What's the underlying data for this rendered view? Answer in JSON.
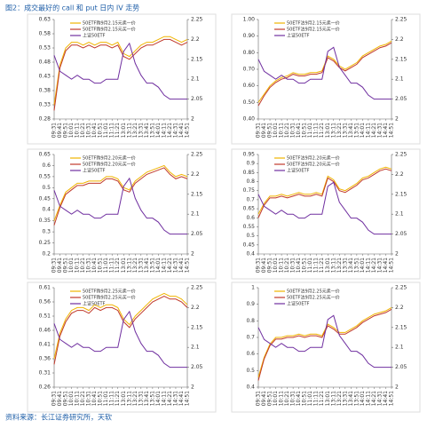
{
  "header": {
    "title": "图2：成交最好的 call 和 put 日内 IV 走势"
  },
  "footer": {
    "source": "资料来源：长江证券研究所，天软"
  },
  "chart_data": [
    {
      "type": "line",
      "categories": [
        "09:31",
        "09:41",
        "09:51",
        "10:01",
        "10:11",
        "10:21",
        "10:31",
        "10:41",
        "10:51",
        "11:01",
        "11:11",
        "11:21",
        "13:01",
        "13:11",
        "13:21",
        "13:31",
        "13:41",
        "13:51",
        "14:01",
        "14:11",
        "14:21",
        "14:31",
        "14:41",
        "14:51"
      ],
      "series": [
        {
          "name": "50ETF购9月2.15元卖一价",
          "color": "#f0b400",
          "values": [
            0.33,
            0.47,
            0.53,
            0.55,
            0.55,
            0.54,
            0.55,
            0.54,
            0.55,
            0.55,
            0.54,
            0.55,
            0.51,
            0.5,
            0.52,
            0.54,
            0.55,
            0.55,
            0.56,
            0.57,
            0.57,
            0.56,
            0.55,
            0.56
          ]
        },
        {
          "name": "50ETF购9月2.15元买一价",
          "color": "#c0392b",
          "values": [
            0.31,
            0.46,
            0.52,
            0.54,
            0.54,
            0.53,
            0.54,
            0.53,
            0.54,
            0.54,
            0.53,
            0.54,
            0.5,
            0.49,
            0.51,
            0.53,
            0.54,
            0.54,
            0.55,
            0.56,
            0.56,
            0.55,
            0.54,
            0.55
          ]
        },
        {
          "name": "上证50ETF",
          "color": "#7030a0",
          "axis": "y2",
          "values": [
            2.16,
            2.12,
            2.11,
            2.1,
            2.11,
            2.1,
            2.1,
            2.09,
            2.09,
            2.1,
            2.1,
            2.1,
            2.17,
            2.19,
            2.14,
            2.11,
            2.09,
            2.09,
            2.08,
            2.06,
            2.05,
            2.05,
            2.05,
            2.05
          ]
        }
      ],
      "ylim": [
        0.28,
        0.63
      ],
      "yticks": [
        0.28,
        0.33,
        0.38,
        0.43,
        0.48,
        0.53,
        0.58,
        0.63
      ],
      "y2lim": [
        2,
        2.25
      ],
      "y2ticks": [
        2,
        2.05,
        2.1,
        2.15,
        2.2,
        2.25
      ]
    },
    {
      "type": "line",
      "categories": [
        "09:31",
        "09:41",
        "09:51",
        "10:01",
        "10:11",
        "10:21",
        "10:31",
        "10:41",
        "10:51",
        "11:01",
        "11:11",
        "11:21",
        "13:01",
        "13:11",
        "13:21",
        "13:31",
        "13:41",
        "13:51",
        "14:01",
        "14:11",
        "14:21",
        "14:31",
        "14:41",
        "14:51"
      ],
      "series": [
        {
          "name": "50ETF沽9月2.15元卖一价",
          "color": "#f0b400",
          "values": [
            0.5,
            0.55,
            0.6,
            0.63,
            0.65,
            0.66,
            0.68,
            0.67,
            0.67,
            0.68,
            0.68,
            0.69,
            0.78,
            0.76,
            0.72,
            0.7,
            0.72,
            0.74,
            0.78,
            0.8,
            0.82,
            0.84,
            0.85,
            0.87
          ]
        },
        {
          "name": "50ETF沽9月2.15元买一价",
          "color": "#c0392b",
          "values": [
            0.48,
            0.54,
            0.59,
            0.62,
            0.64,
            0.65,
            0.67,
            0.66,
            0.66,
            0.67,
            0.67,
            0.68,
            0.77,
            0.75,
            0.71,
            0.69,
            0.71,
            0.73,
            0.77,
            0.79,
            0.81,
            0.83,
            0.84,
            0.86
          ]
        },
        {
          "name": "上证50ETF",
          "color": "#7030a0",
          "axis": "y2",
          "values": [
            2.15,
            2.12,
            2.11,
            2.1,
            2.11,
            2.1,
            2.1,
            2.09,
            2.09,
            2.1,
            2.1,
            2.1,
            2.17,
            2.18,
            2.13,
            2.11,
            2.09,
            2.09,
            2.08,
            2.06,
            2.05,
            2.05,
            2.05,
            2.05
          ]
        }
      ],
      "ylim": [
        0.4,
        1
      ],
      "yticks": [
        {
          "value": 0.4,
          "label": "0.40"
        },
        {
          "value": 0.5,
          "label": "0.50"
        },
        {
          "value": 0.6,
          "label": "0.60"
        },
        {
          "value": 0.7,
          "label": "0.70"
        },
        {
          "value": 0.8,
          "label": "0.80"
        },
        {
          "value": 0.9,
          "label": "0.90"
        },
        {
          "value": 1,
          "label": "1.00"
        }
      ],
      "y2lim": [
        2,
        2.25
      ],
      "y2ticks": [
        2,
        2.05,
        2.1,
        2.15,
        2.2,
        2.25
      ]
    },
    {
      "type": "line",
      "categories": [
        "09:31",
        "09:41",
        "09:51",
        "10:01",
        "10:11",
        "10:21",
        "10:31",
        "10:41",
        "10:51",
        "11:01",
        "11:11",
        "11:21",
        "13:01",
        "13:11",
        "13:21",
        "13:31",
        "13:41",
        "13:51",
        "14:01",
        "14:11",
        "14:21",
        "14:31",
        "14:41",
        "14:51"
      ],
      "series": [
        {
          "name": "50ETF购9月2.20元卖一价",
          "color": "#f0b400",
          "values": [
            0.35,
            0.42,
            0.48,
            0.5,
            0.52,
            0.52,
            0.53,
            0.53,
            0.53,
            0.55,
            0.55,
            0.54,
            0.5,
            0.49,
            0.53,
            0.55,
            0.57,
            0.58,
            0.59,
            0.6,
            0.57,
            0.55,
            0.56,
            0.55
          ]
        },
        {
          "name": "50ETF购9月2.20元买一价",
          "color": "#c0392b",
          "values": [
            0.33,
            0.41,
            0.47,
            0.49,
            0.51,
            0.51,
            0.52,
            0.52,
            0.52,
            0.54,
            0.54,
            0.53,
            0.49,
            0.48,
            0.52,
            0.54,
            0.56,
            0.57,
            0.58,
            0.59,
            0.56,
            0.54,
            0.55,
            0.54
          ]
        },
        {
          "name": "上证50ETF",
          "color": "#7030a0",
          "axis": "y2",
          "values": [
            2.16,
            2.12,
            2.11,
            2.1,
            2.11,
            2.1,
            2.1,
            2.09,
            2.09,
            2.1,
            2.1,
            2.1,
            2.17,
            2.19,
            2.14,
            2.11,
            2.09,
            2.09,
            2.08,
            2.06,
            2.05,
            2.05,
            2.05,
            2.05
          ]
        }
      ],
      "ylim": [
        0.2,
        0.65
      ],
      "yticks": [
        0.2,
        0.25,
        0.3,
        0.35,
        0.4,
        0.45,
        0.5,
        0.55,
        0.6,
        0.65
      ],
      "y2lim": [
        2,
        2.25
      ],
      "y2ticks": [
        2,
        2.05,
        2.1,
        2.15,
        2.2,
        2.25
      ]
    },
    {
      "type": "line",
      "categories": [
        "09:31",
        "09:41",
        "09:51",
        "10:01",
        "10:11",
        "10:21",
        "10:31",
        "10:41",
        "10:51",
        "11:01",
        "11:11",
        "11:21",
        "13:01",
        "13:11",
        "13:21",
        "13:31",
        "13:41",
        "13:51",
        "14:01",
        "14:11",
        "14:21",
        "14:31",
        "14:41",
        "14:51"
      ],
      "series": [
        {
          "name": "50ETF沽9月2.20元卖一价",
          "color": "#f0b400",
          "values": [
            0.62,
            0.68,
            0.72,
            0.72,
            0.73,
            0.72,
            0.73,
            0.74,
            0.73,
            0.73,
            0.74,
            0.73,
            0.83,
            0.81,
            0.76,
            0.75,
            0.77,
            0.79,
            0.82,
            0.83,
            0.85,
            0.87,
            0.88,
            0.87
          ]
        },
        {
          "name": "50ETF沽9月2.20元买一价",
          "color": "#c0392b",
          "values": [
            0.6,
            0.67,
            0.71,
            0.71,
            0.72,
            0.71,
            0.72,
            0.73,
            0.72,
            0.72,
            0.73,
            0.72,
            0.82,
            0.8,
            0.75,
            0.74,
            0.76,
            0.78,
            0.81,
            0.82,
            0.84,
            0.86,
            0.87,
            0.86
          ]
        },
        {
          "name": "上证50ETF",
          "color": "#7030a0",
          "axis": "y2",
          "values": [
            2.15,
            2.12,
            2.11,
            2.1,
            2.11,
            2.1,
            2.1,
            2.09,
            2.09,
            2.1,
            2.1,
            2.1,
            2.17,
            2.18,
            2.13,
            2.11,
            2.09,
            2.09,
            2.08,
            2.06,
            2.05,
            2.05,
            2.05,
            2.05
          ]
        }
      ],
      "ylim": [
        0.4,
        0.95
      ],
      "yticks": [
        0.4,
        0.45,
        0.5,
        0.55,
        0.6,
        0.65,
        0.7,
        0.75,
        0.8,
        0.85,
        0.9,
        0.95
      ],
      "y2lim": [
        2,
        2.25
      ],
      "y2ticks": [
        2,
        2.05,
        2.1,
        2.15,
        2.2,
        2.25
      ]
    },
    {
      "type": "line",
      "categories": [
        "09:31",
        "09:41",
        "09:51",
        "10:01",
        "10:11",
        "10:21",
        "10:31",
        "10:41",
        "10:51",
        "11:01",
        "11:11",
        "11:21",
        "13:01",
        "13:11",
        "13:21",
        "13:31",
        "13:41",
        "13:51",
        "14:01",
        "14:11",
        "14:21",
        "14:31",
        "14:41",
        "14:51"
      ],
      "series": [
        {
          "name": "50ETF购9月2.25元卖一价",
          "color": "#f0b400",
          "values": [
            0.36,
            0.45,
            0.5,
            0.53,
            0.54,
            0.54,
            0.53,
            0.55,
            0.54,
            0.55,
            0.55,
            0.54,
            0.5,
            0.48,
            0.51,
            0.53,
            0.55,
            0.57,
            0.58,
            0.59,
            0.58,
            0.58,
            0.57,
            0.55
          ]
        },
        {
          "name": "50ETF购9月2.25元买一价",
          "color": "#c0392b",
          "values": [
            0.34,
            0.44,
            0.49,
            0.52,
            0.53,
            0.53,
            0.52,
            0.54,
            0.53,
            0.54,
            0.54,
            0.53,
            0.49,
            0.47,
            0.5,
            0.52,
            0.54,
            0.56,
            0.57,
            0.58,
            0.57,
            0.57,
            0.56,
            0.54
          ]
        },
        {
          "name": "上证50ETF",
          "color": "#7030a0",
          "axis": "y2",
          "values": [
            2.16,
            2.12,
            2.11,
            2.1,
            2.11,
            2.1,
            2.1,
            2.09,
            2.09,
            2.1,
            2.1,
            2.1,
            2.17,
            2.19,
            2.14,
            2.11,
            2.09,
            2.09,
            2.08,
            2.06,
            2.05,
            2.05,
            2.05,
            2.05
          ]
        }
      ],
      "ylim": [
        0.26,
        0.61
      ],
      "yticks": [
        0.26,
        0.31,
        0.36,
        0.41,
        0.46,
        0.51,
        0.56,
        0.61
      ],
      "y2lim": [
        2,
        2.25
      ],
      "y2ticks": [
        2,
        2.05,
        2.1,
        2.15,
        2.2,
        2.25
      ]
    },
    {
      "type": "line",
      "categories": [
        "09:31",
        "09:41",
        "09:51",
        "10:01",
        "10:11",
        "10:21",
        "10:31",
        "10:41",
        "10:51",
        "11:01",
        "11:11",
        "11:21",
        "13:01",
        "13:11",
        "13:21",
        "13:31",
        "13:41",
        "13:51",
        "14:01",
        "14:11",
        "14:21",
        "14:31",
        "14:41",
        "14:51"
      ],
      "series": [
        {
          "name": "50ETF沽9月2.25元卖一价",
          "color": "#f0b400",
          "values": [
            0.46,
            0.58,
            0.66,
            0.7,
            0.7,
            0.71,
            0.71,
            0.72,
            0.71,
            0.72,
            0.72,
            0.71,
            0.78,
            0.76,
            0.73,
            0.73,
            0.75,
            0.77,
            0.8,
            0.82,
            0.84,
            0.85,
            0.86,
            0.88
          ]
        },
        {
          "name": "50ETF沽9月2.25元买一价",
          "color": "#c0392b",
          "values": [
            0.44,
            0.57,
            0.65,
            0.69,
            0.69,
            0.7,
            0.7,
            0.71,
            0.7,
            0.71,
            0.71,
            0.7,
            0.77,
            0.75,
            0.72,
            0.72,
            0.74,
            0.76,
            0.79,
            0.81,
            0.83,
            0.84,
            0.85,
            0.87
          ]
        },
        {
          "name": "上证50ETF",
          "color": "#7030a0",
          "axis": "y2",
          "values": [
            2.15,
            2.12,
            2.11,
            2.1,
            2.11,
            2.1,
            2.1,
            2.09,
            2.09,
            2.1,
            2.1,
            2.1,
            2.17,
            2.18,
            2.13,
            2.11,
            2.09,
            2.09,
            2.08,
            2.06,
            2.05,
            2.05,
            2.05,
            2.05
          ]
        }
      ],
      "ylim": [
        0.4,
        1
      ],
      "yticks": [
        0.4,
        0.5,
        0.6,
        0.7,
        0.8,
        0.9,
        1
      ],
      "y2lim": [
        2,
        2.25
      ],
      "y2ticks": [
        2,
        2.05,
        2.1,
        2.15,
        2.2,
        2.25
      ]
    }
  ]
}
